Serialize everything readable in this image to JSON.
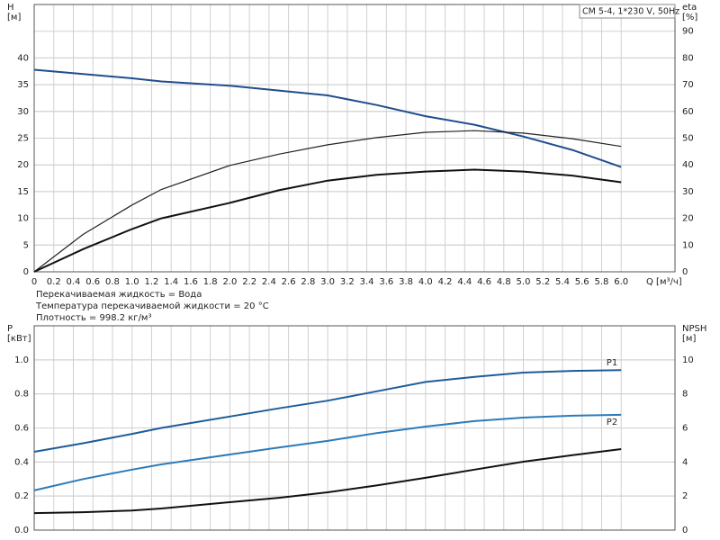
{
  "chart_data": [
    {
      "type": "line",
      "title": "CM 5-4, 1*230 V, 50Hz",
      "ylabel": "H",
      "yunit": "[м]",
      "y2label": "eta",
      "y2unit": "[%]",
      "xlabel": "Q [м³/ч]",
      "notes": [
        "Перекачиваемая жидкость = Вода",
        "Температура перекачиваемой жидкости = 20 °C",
        "Плотность = 998.2 кг/м³"
      ],
      "x": [
        0,
        0.5,
        1,
        1.3,
        2,
        2.5,
        3,
        3.5,
        4,
        4.5,
        5,
        5.5,
        6
      ],
      "series": [
        {
          "color": "#1f4e8c",
          "values": [
            37.8,
            37.0,
            36.2,
            35.6,
            34.8,
            33.9,
            33.0,
            31.2,
            29.1,
            27.5,
            25.3,
            22.8,
            19.6
          ]
        },
        {
          "color": "#222222",
          "axis": "y2",
          "values": [
            0,
            14,
            25,
            30.8,
            39.8,
            44,
            47.5,
            50.2,
            52.2,
            52.8,
            51.9,
            49.8,
            46.9
          ]
        },
        {
          "color": "#111111",
          "axis": "y2",
          "values": [
            0,
            8.5,
            16,
            20,
            25.8,
            30.5,
            34.1,
            36.3,
            37.5,
            38.2,
            37.5,
            36,
            33.5
          ]
        }
      ],
      "xlim": [
        0,
        6.55
      ],
      "xticks": [
        0,
        0.2,
        0.4,
        0.6,
        0.8,
        {
          "value": 1,
          "label": "1.0"
        },
        1.2,
        1.4,
        1.6,
        1.8,
        {
          "value": 2,
          "label": "2.0"
        },
        2.2,
        2.4,
        2.6,
        2.8,
        {
          "value": 3,
          "label": "3.0"
        },
        3.2,
        3.4,
        3.6,
        3.8,
        {
          "value": 4,
          "label": "4.0"
        },
        4.2,
        4.4,
        4.6,
        4.8,
        {
          "value": 5,
          "label": "5.0"
        },
        5.2,
        5.4,
        5.6,
        5.8,
        {
          "value": 6,
          "label": "6.0"
        }
      ],
      "ylim": [
        0,
        50
      ],
      "yticks": [
        0,
        5,
        10,
        15,
        20,
        25,
        30,
        35,
        40
      ],
      "y2lim": [
        0,
        100
      ],
      "y2ticks": [
        0,
        10,
        20,
        30,
        40,
        50,
        60,
        70,
        80,
        90
      ],
      "grid": true
    },
    {
      "type": "line",
      "ylabel": "P",
      "yunit": "[кВт]",
      "y2label": "NPSH",
      "y2unit": "[м]",
      "x": [
        0,
        0.5,
        1,
        1.3,
        2,
        2.5,
        3,
        3.5,
        4,
        4.5,
        5,
        5.5,
        6
      ],
      "series": [
        {
          "name": "P1",
          "color": "#1f5c99",
          "values": [
            0.46,
            0.51,
            0.565,
            0.6,
            0.667,
            0.715,
            0.76,
            0.815,
            0.87,
            0.9,
            0.925,
            0.935,
            0.94
          ]
        },
        {
          "name": "P2",
          "color": "#2b7bb9",
          "values": [
            0.233,
            0.3,
            0.355,
            0.386,
            0.444,
            0.485,
            0.524,
            0.57,
            0.608,
            0.64,
            0.661,
            0.672,
            0.677
          ]
        },
        {
          "color": "#111111",
          "axis": "y2",
          "values": [
            1.0,
            1.05,
            1.15,
            1.27,
            1.64,
            1.9,
            2.22,
            2.62,
            3.07,
            3.55,
            4.02,
            4.4,
            4.76
          ]
        }
      ],
      "xlim": [
        0,
        6.55
      ],
      "ylim": [
        0,
        1.2
      ],
      "yticks": [
        {
          "value": 0,
          "label": "0.0"
        },
        0.2,
        0.4,
        0.6,
        0.8,
        {
          "value": 1,
          "label": "1.0"
        }
      ],
      "y2lim": [
        0,
        12
      ],
      "y2ticks": [
        0,
        2,
        4,
        6,
        8,
        10
      ],
      "grid": true
    }
  ]
}
